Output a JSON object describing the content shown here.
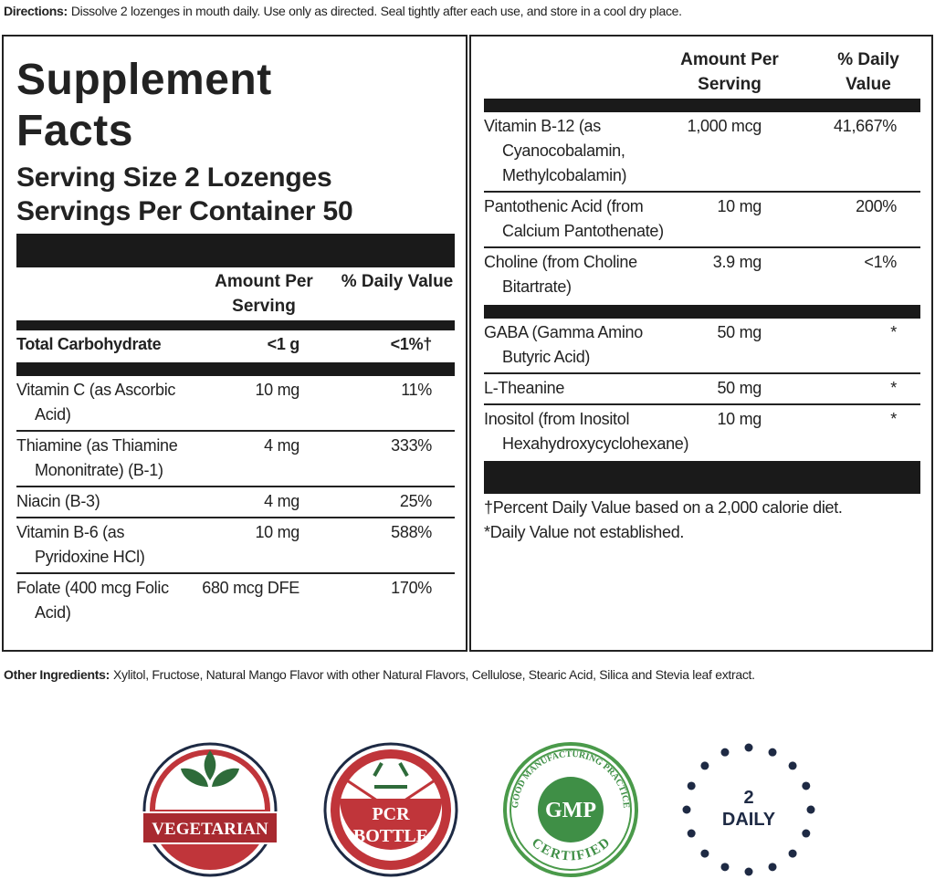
{
  "directions": {
    "label": "Directions:",
    "text": "Dissolve 2 lozenges in mouth daily. Use only as directed. Seal tightly after each use, and store in a cool dry place."
  },
  "facts": {
    "title": "Supplement Facts",
    "serving_size": "Serving Size 2 Lozenges",
    "servings": "Servings Per Container 50",
    "amount_header": "Amount Per Serving",
    "dv_header": "% Daily Value",
    "left_rows": [
      [
        "Total Carbohydrate",
        "<1 g",
        "<1%†"
      ],
      [
        "Vitamin C (as Ascorbic Acid)",
        "10 mg",
        "11%"
      ],
      [
        "Thiamine (as Thiamine Mononitrate) (B-1)",
        "4 mg",
        "333%"
      ],
      [
        "Niacin (B-3)",
        "4 mg",
        "25%"
      ],
      [
        "Vitamin B-6 (as Pyridoxine HCl)",
        "10 mg",
        "588%"
      ],
      [
        "Folate (400 mcg Folic Acid)",
        "680 mcg DFE",
        "170%"
      ]
    ],
    "right_rows": [
      [
        "Vitamin B-12 (as Cyanocobalamin, Methylcobalamin)",
        "1,000 mcg",
        "41,667%"
      ],
      [
        "Pantothenic Acid (from Calcium Pantothenate)",
        "10 mg",
        "200%"
      ],
      [
        "Choline (from Choline Bitartrate)",
        "3.9 mg",
        "<1%"
      ],
      [
        "GABA (Gamma Amino Butyric Acid)",
        "50 mg",
        "*"
      ],
      [
        "L-Theanine",
        "50 mg",
        "*"
      ],
      [
        "Inositol (from Inositol Hexahydroxycyclohexane)",
        "10 mg",
        "*"
      ]
    ],
    "footnotes": [
      "†Percent Daily Value based on a 2,000 calorie diet.",
      "*Daily Value not established."
    ]
  },
  "other_ingredients": {
    "label": "Other Ingredients:",
    "text": "Xylitol, Fructose, Natural Mango Flavor with other Natural Flavors, Cellulose, Stearic Acid, Silica and Stevia leaf extract."
  },
  "badges": {
    "vegetarian": "VEGETARIAN",
    "pcr": [
      "PCR",
      "BOTTLE"
    ],
    "gmp": {
      "label": "GMP",
      "top": "GOOD MANUFACTURING PRACTICE",
      "bottom": "CERTIFIED"
    },
    "daily": {
      "number": "2",
      "label": "DAILY"
    }
  }
}
